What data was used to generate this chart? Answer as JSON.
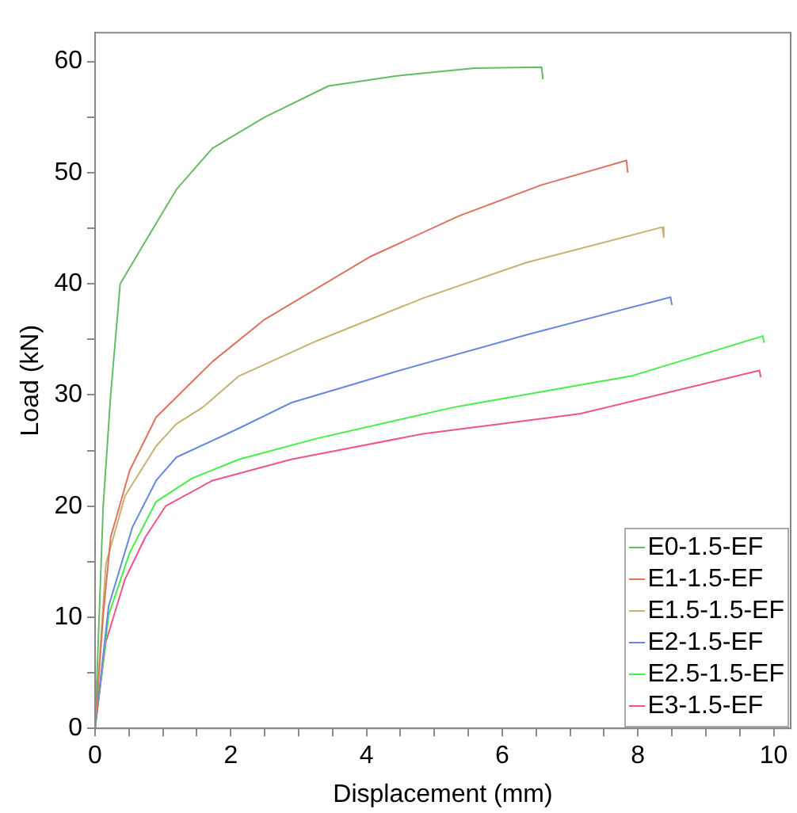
{
  "chart_data": {
    "type": "line",
    "xlabel": "Displacement (mm)",
    "ylabel": "Load (kN)",
    "xlim": [
      0,
      10.25
    ],
    "ylim": [
      0,
      62.6
    ],
    "xticks": [
      0,
      {
        "value": 0.5,
        "label": null
      },
      {
        "value": 1,
        "label": null
      },
      {
        "value": 1.5,
        "label": null
      },
      2,
      {
        "value": 2.5,
        "label": null
      },
      {
        "value": 3,
        "label": null
      },
      {
        "value": 3.5,
        "label": null
      },
      4,
      {
        "value": 4.5,
        "label": null
      },
      {
        "value": 5,
        "label": null
      },
      {
        "value": 5.5,
        "label": null
      },
      6,
      {
        "value": 6.5,
        "label": null
      },
      {
        "value": 7,
        "label": null
      },
      {
        "value": 7.5,
        "label": null
      },
      8,
      {
        "value": 8.5,
        "label": null
      },
      {
        "value": 9,
        "label": null
      },
      {
        "value": 9.5,
        "label": null
      },
      10
    ],
    "yticks": [
      0,
      {
        "value": 5,
        "label": null
      },
      10,
      {
        "value": 15,
        "label": null
      },
      20,
      {
        "value": 25,
        "label": null
      },
      30,
      {
        "value": 35,
        "label": null
      },
      40,
      {
        "value": 45,
        "label": null
      },
      50,
      {
        "value": 55,
        "label": null
      },
      60
    ],
    "grid": false,
    "legend": "bottom right",
    "marker": "none",
    "line_style": "solid",
    "series": [
      {
        "name": "E0-1.5-EF",
        "color": "#66bb66",
        "x": [
          0,
          0.06,
          0.12,
          0.23,
          0.37,
          0.69,
          1.2,
          1.73,
          2.5,
          3.44,
          4.43,
          5.59,
          6.58,
          6.6
        ],
        "values": [
          0,
          10,
          20,
          30,
          40,
          43.3,
          48.5,
          52.2,
          55,
          57.8,
          58.7,
          59.4,
          59.5,
          58.4
        ]
      },
      {
        "name": "E1-1.5-EF",
        "color": "#e07060",
        "x": [
          0,
          0.12,
          0.23,
          0.51,
          0.9,
          1.73,
          2.5,
          4.04,
          5.36,
          6.58,
          7.83,
          7.85
        ],
        "values": [
          0,
          10.2,
          17.2,
          23.2,
          28,
          33,
          36.8,
          42.4,
          46.1,
          48.9,
          51.1,
          50
        ]
      },
      {
        "name": "E1.5-1.5-EF",
        "color": "#c8b070",
        "x": [
          0,
          0.16,
          0.44,
          0.9,
          1.2,
          1.59,
          2.12,
          3.28,
          4.83,
          6.35,
          8.36,
          8.38
        ],
        "values": [
          0,
          14.8,
          20.9,
          25.4,
          27.4,
          28.9,
          31.7,
          34.9,
          38.7,
          41.9,
          45.1,
          44.2
        ]
      },
      {
        "name": "E2-1.5-EF",
        "color": "#6688dd",
        "x": [
          0,
          0.2,
          0.55,
          0.9,
          1.2,
          2.12,
          2.89,
          4.43,
          6.35,
          8.48,
          8.5
        ],
        "values": [
          0,
          11,
          18.1,
          22.3,
          24.4,
          27,
          29.3,
          32.1,
          35.4,
          38.8,
          38.1
        ]
      },
      {
        "name": "E2.5-1.5-EF",
        "color": "#44ee44",
        "x": [
          0,
          0.2,
          0.51,
          0.9,
          1.43,
          2.12,
          3.28,
          5.29,
          7.9,
          9.84,
          9.86
        ],
        "values": [
          0,
          10.2,
          15.8,
          20.4,
          22.5,
          24.2,
          26.1,
          28.9,
          31.7,
          35.3,
          34.7
        ]
      },
      {
        "name": "E3-1.5-EF",
        "color": "#ee5588",
        "x": [
          0,
          0.16,
          0.44,
          0.74,
          1.04,
          1.73,
          2.89,
          4.83,
          7.14,
          9.79,
          9.81
        ],
        "values": [
          0,
          7.8,
          13.4,
          17.2,
          20,
          22.3,
          24.2,
          26.5,
          28.3,
          32.2,
          31.6
        ]
      }
    ]
  }
}
